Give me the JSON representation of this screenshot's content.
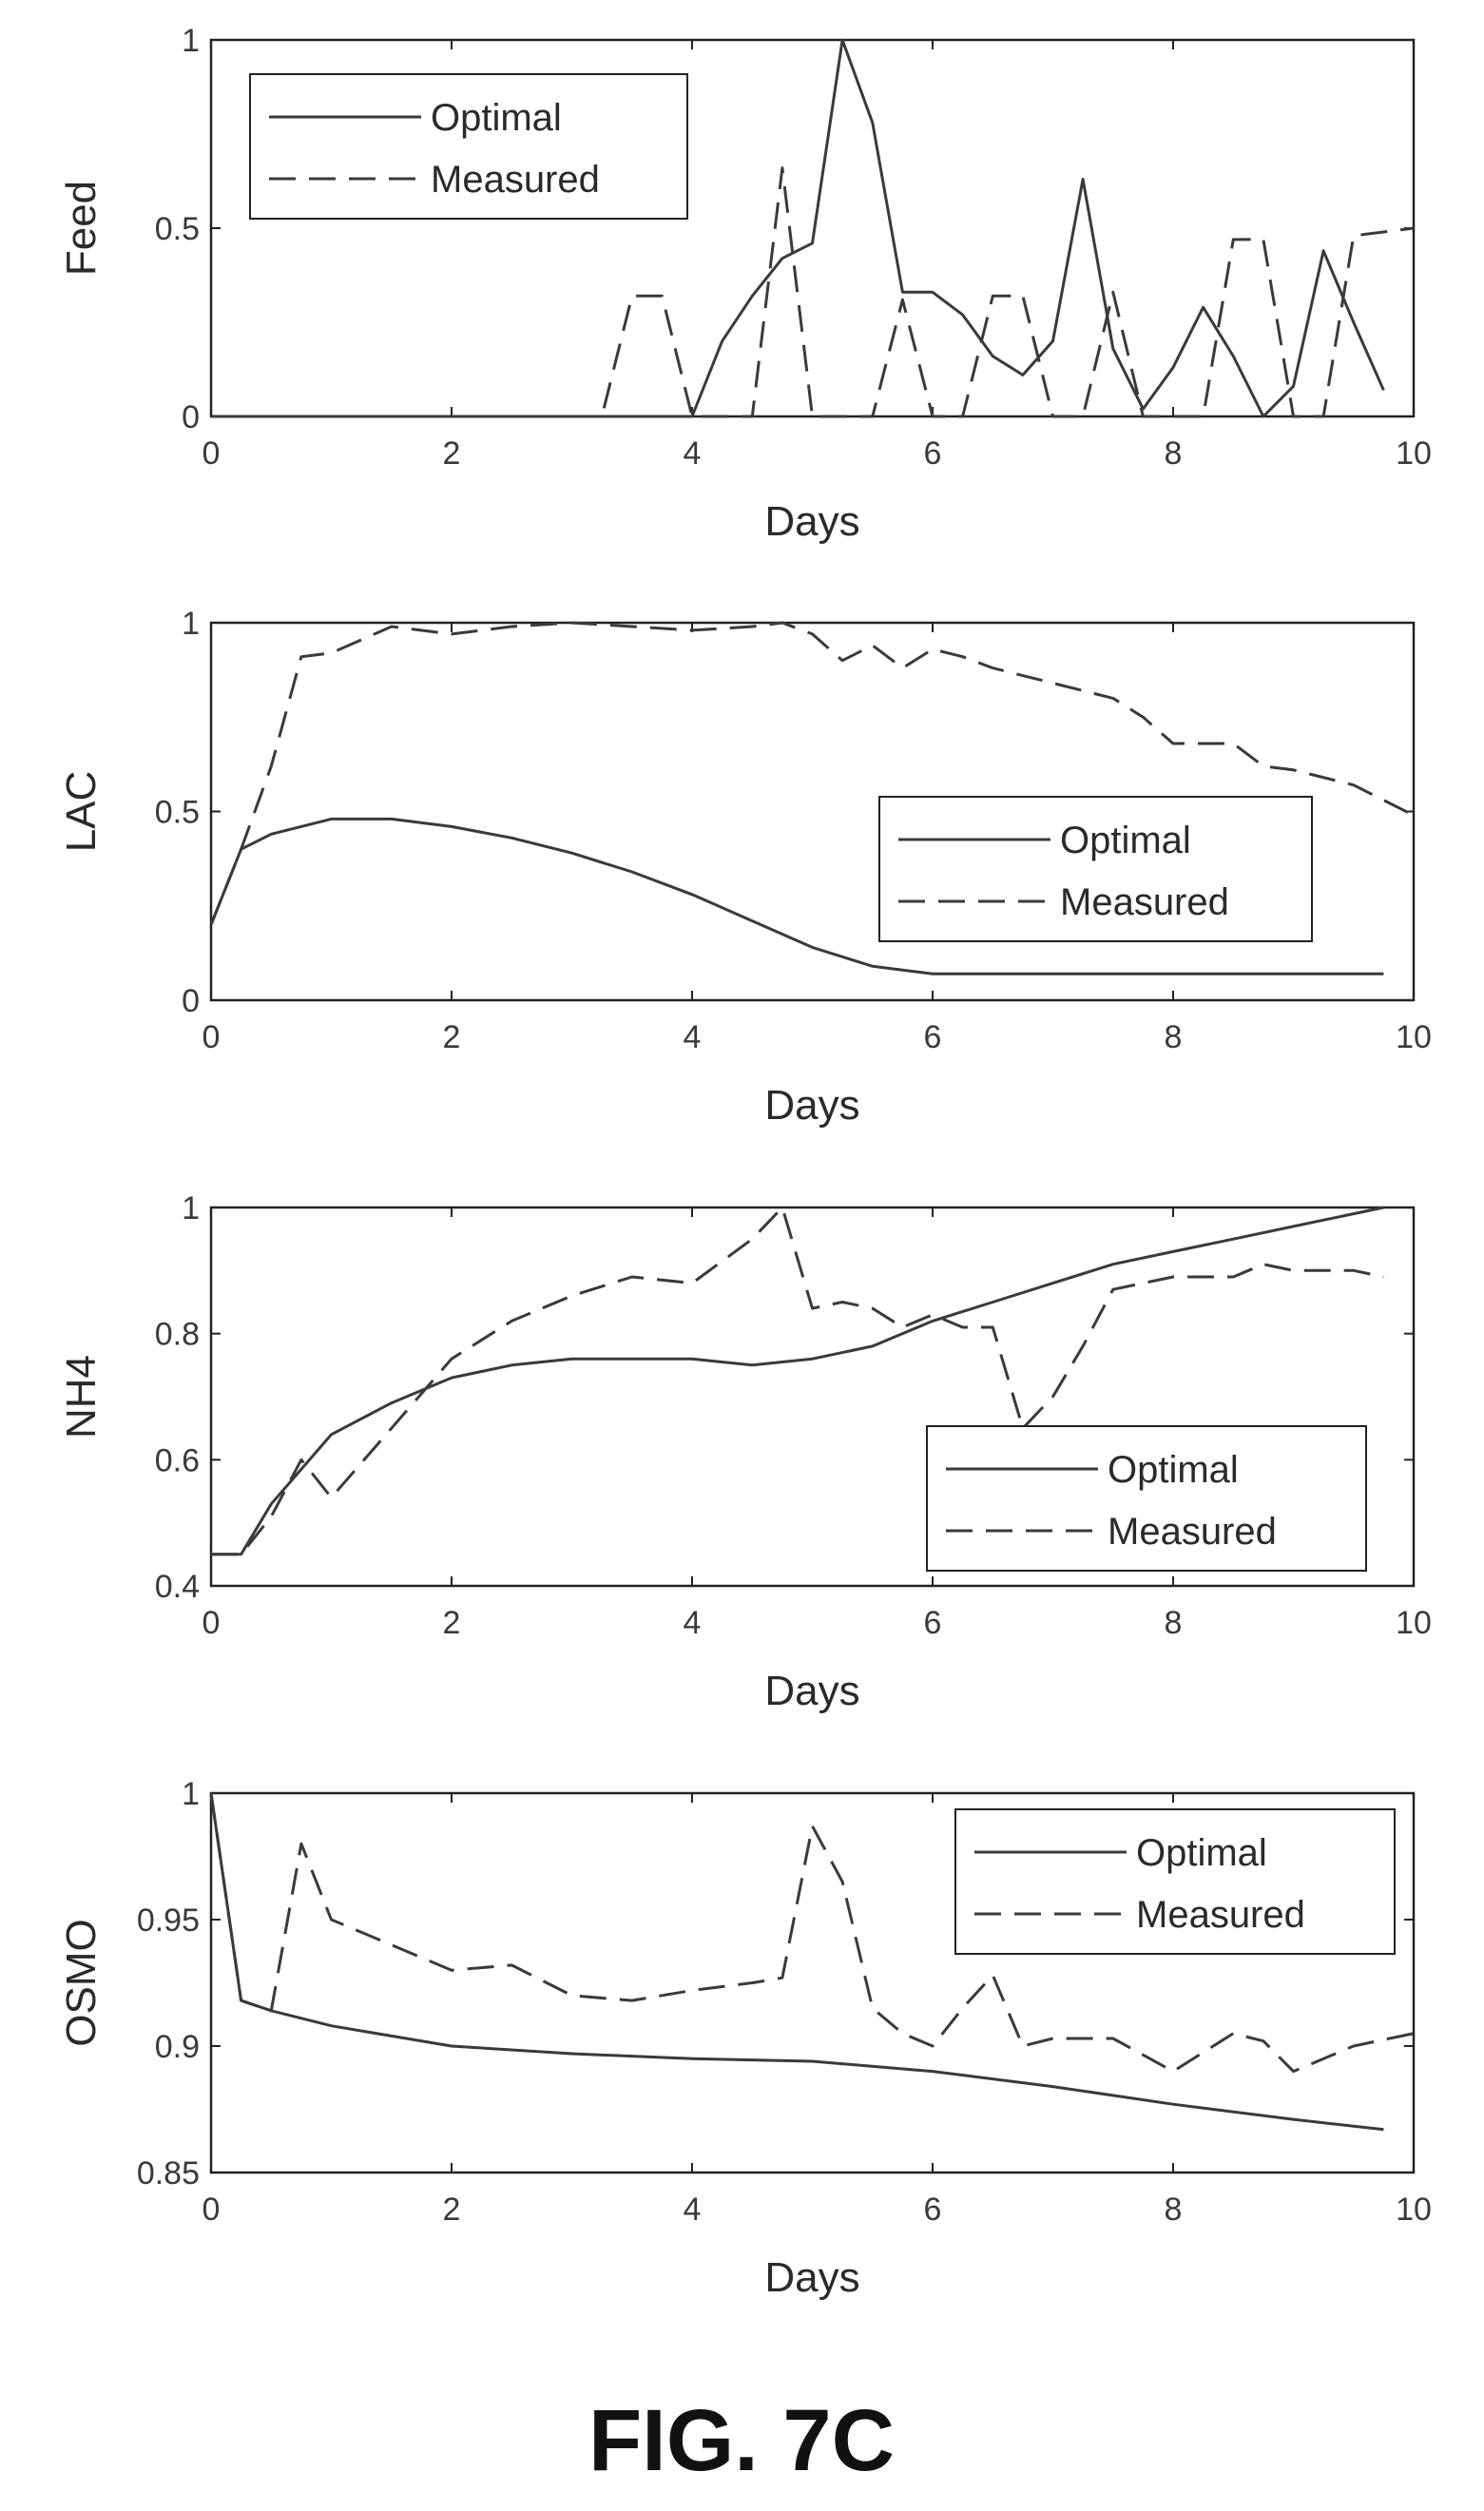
{
  "caption": "FIG. 7C",
  "chart_data": [
    {
      "type": "line",
      "xlabel": "Days",
      "ylabel": "Feed",
      "xlim": [
        0,
        10
      ],
      "ylim": [
        0,
        1
      ],
      "xticks": [
        "0",
        "2",
        "4",
        "6",
        "8",
        "10"
      ],
      "yticks": [
        "0",
        "0.5",
        "1"
      ],
      "ytick_values": [
        0,
        0.5,
        1
      ],
      "legend_position": "top-left",
      "series": [
        {
          "name": "Optimal",
          "style": "solid",
          "x": [
            0,
            4.0,
            4.25,
            4.5,
            4.75,
            5.0,
            5.25,
            5.5,
            5.75,
            6.0,
            6.25,
            6.5,
            6.75,
            7.0,
            7.25,
            7.5,
            7.75,
            8.0,
            8.25,
            8.5,
            8.75,
            9.0,
            9.25,
            9.5,
            9.75
          ],
          "y": [
            0,
            0,
            0.2,
            0.32,
            0.42,
            0.46,
            1.0,
            0.78,
            0.33,
            0.33,
            0.27,
            0.16,
            0.11,
            0.2,
            0.63,
            0.18,
            0.02,
            0.13,
            0.29,
            0.16,
            0.0,
            0.08,
            0.44,
            0.25,
            0.07
          ]
        },
        {
          "name": "Measured",
          "style": "dashed",
          "x": [
            0,
            3.25,
            3.5,
            3.75,
            4.0,
            4.5,
            4.75,
            5.0,
            5.25,
            5.5,
            5.75,
            6.0,
            6.25,
            6.5,
            6.75,
            7.0,
            7.25,
            7.5,
            7.75,
            8.0,
            8.25,
            8.5,
            8.75,
            9.0,
            9.25,
            9.5,
            10.0
          ],
          "y": [
            0,
            0,
            0.32,
            0.32,
            0.0,
            0.0,
            0.66,
            0.0,
            0.0,
            0.0,
            0.31,
            0.0,
            0.0,
            0.32,
            0.32,
            0.0,
            0.0,
            0.33,
            0.0,
            0.0,
            0.0,
            0.47,
            0.47,
            0.0,
            0.0,
            0.48,
            0.5
          ]
        }
      ]
    },
    {
      "type": "line",
      "xlabel": "Days",
      "ylabel": "LAC",
      "xlim": [
        0,
        10
      ],
      "ylim": [
        0,
        1
      ],
      "xticks": [
        "0",
        "2",
        "4",
        "6",
        "8",
        "10"
      ],
      "yticks": [
        "0",
        "0.5",
        "1"
      ],
      "ytick_values": [
        0,
        0.5,
        1
      ],
      "legend_position": "right",
      "series": [
        {
          "name": "Optimal",
          "style": "solid",
          "x": [
            0,
            0.25,
            0.5,
            1.0,
            1.5,
            2.0,
            2.5,
            3.0,
            3.5,
            4.0,
            4.5,
            5.0,
            5.5,
            6.0,
            7.0,
            8.0,
            9.0,
            9.75
          ],
          "y": [
            0.2,
            0.4,
            0.44,
            0.48,
            0.48,
            0.46,
            0.43,
            0.39,
            0.34,
            0.28,
            0.21,
            0.14,
            0.09,
            0.07,
            0.07,
            0.07,
            0.07,
            0.07
          ]
        },
        {
          "name": "Measured",
          "style": "dashed",
          "x": [
            0,
            0.25,
            0.5,
            0.75,
            1.0,
            1.5,
            2.0,
            2.5,
            3.0,
            3.5,
            4.0,
            4.5,
            4.75,
            5.0,
            5.25,
            5.5,
            5.75,
            6.0,
            6.25,
            6.5,
            7.0,
            7.5,
            7.75,
            8.0,
            8.5,
            8.75,
            9.0,
            9.5,
            10.0
          ],
          "y": [
            0.2,
            0.4,
            0.62,
            0.91,
            0.92,
            0.99,
            0.97,
            0.99,
            1.0,
            0.99,
            0.98,
            0.99,
            1.0,
            0.97,
            0.9,
            0.94,
            0.88,
            0.93,
            0.91,
            0.88,
            0.84,
            0.8,
            0.75,
            0.68,
            0.68,
            0.62,
            0.61,
            0.57,
            0.49
          ]
        }
      ]
    },
    {
      "type": "line",
      "xlabel": "Days",
      "ylabel": "NH4",
      "xlim": [
        0,
        10
      ],
      "ylim": [
        0.4,
        1
      ],
      "xticks": [
        "0",
        "2",
        "4",
        "6",
        "8",
        "10"
      ],
      "yticks": [
        "0.4",
        "0.6",
        "0.8",
        "1"
      ],
      "ytick_values": [
        0.4,
        0.6,
        0.8,
        1
      ],
      "legend_position": "bottom-right",
      "series": [
        {
          "name": "Optimal",
          "style": "solid",
          "x": [
            0,
            0.25,
            0.5,
            1.0,
            1.5,
            2.0,
            2.5,
            3.0,
            3.5,
            4.0,
            4.5,
            5.0,
            5.5,
            6.0,
            6.5,
            7.0,
            7.5,
            8.0,
            8.5,
            9.0,
            9.5,
            9.75
          ],
          "y": [
            0.45,
            0.45,
            0.53,
            0.64,
            0.69,
            0.73,
            0.75,
            0.76,
            0.76,
            0.76,
            0.75,
            0.76,
            0.78,
            0.82,
            0.85,
            0.88,
            0.91,
            0.93,
            0.95,
            0.97,
            0.99,
            1.0
          ]
        },
        {
          "name": "Measured",
          "style": "dashed",
          "x": [
            0,
            0.25,
            0.5,
            0.75,
            1.0,
            1.5,
            2.0,
            2.5,
            3.0,
            3.5,
            4.0,
            4.5,
            4.75,
            5.0,
            5.25,
            5.5,
            5.75,
            6.0,
            6.25,
            6.5,
            6.75,
            7.0,
            7.25,
            7.5,
            8.0,
            8.5,
            8.75,
            9.0,
            9.5,
            9.75
          ],
          "y": [
            0.45,
            0.45,
            0.51,
            0.6,
            0.54,
            0.65,
            0.76,
            0.82,
            0.86,
            0.89,
            0.88,
            0.95,
            1.0,
            0.84,
            0.85,
            0.84,
            0.81,
            0.83,
            0.81,
            0.81,
            0.65,
            0.7,
            0.78,
            0.87,
            0.89,
            0.89,
            0.91,
            0.9,
            0.9,
            0.89
          ]
        }
      ]
    },
    {
      "type": "line",
      "xlabel": "Days",
      "ylabel": "OSMO",
      "xlim": [
        0,
        10
      ],
      "ylim": [
        0.85,
        1
      ],
      "xticks": [
        "0",
        "2",
        "4",
        "6",
        "8",
        "10"
      ],
      "yticks": [
        "0.85",
        "0.9",
        "0.95",
        "1"
      ],
      "ytick_values": [
        0.85,
        0.9,
        0.95,
        1
      ],
      "legend_position": "top-right",
      "series": [
        {
          "name": "Optimal",
          "style": "solid",
          "x": [
            0,
            0.25,
            0.5,
            1.0,
            1.5,
            2.0,
            3.0,
            4.0,
            5.0,
            6.0,
            7.0,
            8.0,
            9.0,
            9.75
          ],
          "y": [
            1.0,
            0.918,
            0.914,
            0.908,
            0.904,
            0.9,
            0.897,
            0.895,
            0.894,
            0.89,
            0.884,
            0.877,
            0.871,
            0.867
          ]
        },
        {
          "name": "Measured",
          "style": "dashed",
          "x": [
            0,
            0.25,
            0.5,
            0.75,
            1.0,
            1.5,
            2.0,
            2.5,
            3.0,
            3.5,
            4.0,
            4.5,
            4.75,
            5.0,
            5.25,
            5.5,
            5.75,
            6.0,
            6.25,
            6.5,
            6.75,
            7.0,
            7.5,
            8.0,
            8.5,
            8.75,
            9.0,
            9.5,
            10.0
          ],
          "y": [
            1.0,
            0.918,
            0.914,
            0.98,
            0.95,
            0.94,
            0.93,
            0.932,
            0.92,
            0.918,
            0.922,
            0.925,
            0.927,
            0.987,
            0.965,
            0.915,
            0.905,
            0.9,
            0.915,
            0.928,
            0.9,
            0.903,
            0.903,
            0.89,
            0.905,
            0.902,
            0.89,
            0.9,
            0.905
          ]
        }
      ]
    }
  ]
}
